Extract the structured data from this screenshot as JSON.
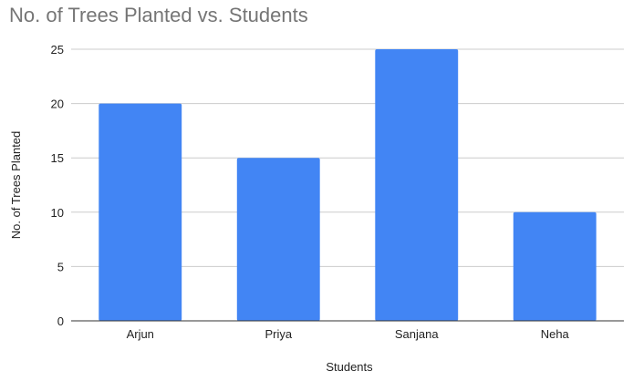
{
  "chart_data": {
    "type": "bar",
    "title": "No. of Trees Planted vs. Students",
    "xlabel": "Students",
    "ylabel": "No. of Trees Planted",
    "categories": [
      "Arjun",
      "Priya",
      "Sanjana",
      "Neha"
    ],
    "values": [
      20,
      15,
      25,
      10
    ],
    "ylim": [
      0,
      25
    ],
    "yticks": [
      0,
      5,
      10,
      15,
      20,
      25
    ],
    "grid": true,
    "legend": "none",
    "bar_color": "#4285f4",
    "grid_color": "#cccccc",
    "title_color": "#757575"
  }
}
